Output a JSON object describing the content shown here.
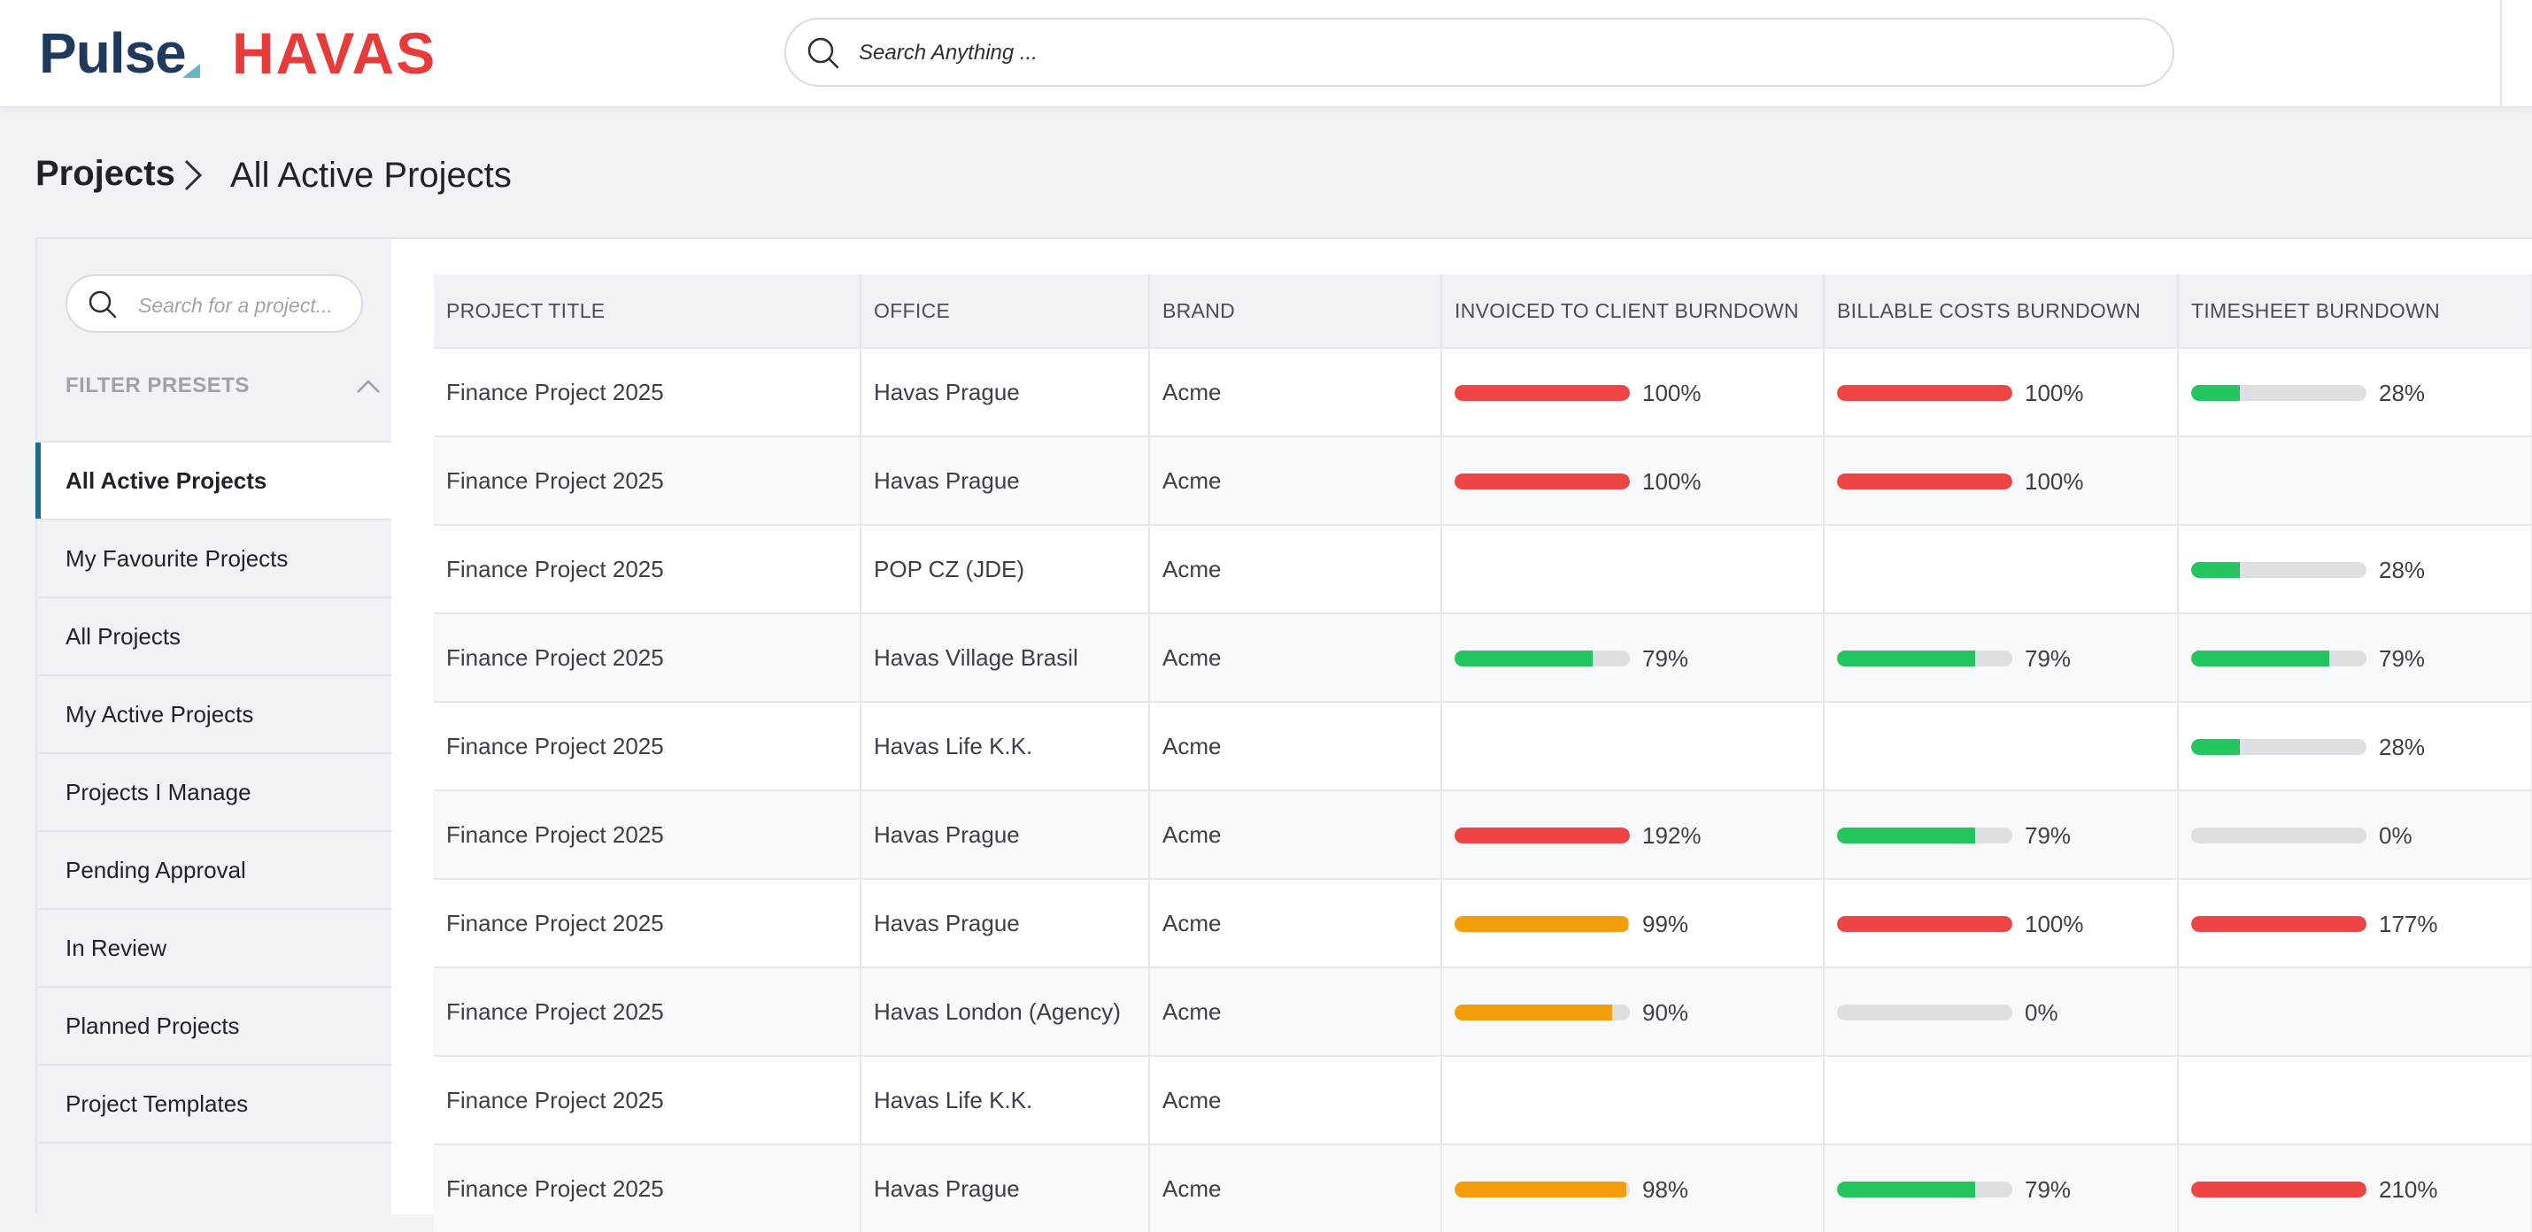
{
  "header": {
    "logo_primary": "Pulse",
    "logo_secondary": "HAVAS",
    "search_placeholder": "Search Anything ..."
  },
  "breadcrumb": {
    "root": "Projects",
    "current": "All Active Projects"
  },
  "sidebar": {
    "search_placeholder": "Search for a project...",
    "filter_presets_label": "FILTER PRESETS",
    "items": [
      {
        "label": "All Active Projects",
        "active": true
      },
      {
        "label": "My Favourite Projects",
        "active": false
      },
      {
        "label": "All Projects",
        "active": false
      },
      {
        "label": "My Active Projects",
        "active": false
      },
      {
        "label": "Projects I Manage",
        "active": false
      },
      {
        "label": "Pending Approval",
        "active": false
      },
      {
        "label": "In Review",
        "active": false
      },
      {
        "label": "Planned Projects",
        "active": false
      },
      {
        "label": "Project Templates",
        "active": false
      }
    ]
  },
  "table": {
    "columns": [
      "PROJECT TITLE",
      "OFFICE",
      "BRAND",
      "INVOICED TO CLIENT BURNDOWN",
      "BILLABLE COSTS BURNDOWN",
      "TIMESHEET BURNDOWN"
    ],
    "rows": [
      {
        "title": "Finance Project 2025",
        "office": "Havas Prague",
        "brand": "Acme",
        "invoiced": {
          "pct": 100,
          "label": "100%",
          "color": "#ef4444"
        },
        "billable": {
          "pct": 100,
          "label": "100%",
          "color": "#ef4444"
        },
        "timesheet": {
          "pct": 28,
          "label": "28%",
          "color": "#22c55e"
        }
      },
      {
        "title": "Finance Project 2025",
        "office": "Havas Prague",
        "brand": "Acme",
        "invoiced": {
          "pct": 100,
          "label": "100%",
          "color": "#ef4444"
        },
        "billable": {
          "pct": 100,
          "label": "100%",
          "color": "#ef4444"
        },
        "timesheet": null
      },
      {
        "title": "Finance Project 2025",
        "office": "POP CZ (JDE)",
        "brand": "Acme",
        "invoiced": null,
        "billable": null,
        "timesheet": {
          "pct": 28,
          "label": "28%",
          "color": "#22c55e"
        }
      },
      {
        "title": "Finance Project 2025",
        "office": "Havas Village Brasil",
        "brand": "Acme",
        "invoiced": {
          "pct": 79,
          "label": "79%",
          "color": "#22c55e"
        },
        "billable": {
          "pct": 79,
          "label": "79%",
          "color": "#22c55e"
        },
        "timesheet": {
          "pct": 79,
          "label": "79%",
          "color": "#22c55e"
        }
      },
      {
        "title": "Finance Project 2025",
        "office": "Havas Life K.K.",
        "brand": "Acme",
        "invoiced": null,
        "billable": null,
        "timesheet": {
          "pct": 28,
          "label": "28%",
          "color": "#22c55e"
        }
      },
      {
        "title": "Finance Project 2025",
        "office": "Havas Prague",
        "brand": "Acme",
        "invoiced": {
          "pct": 100,
          "label": "192%",
          "color": "#ef4444"
        },
        "billable": {
          "pct": 79,
          "label": "79%",
          "color": "#22c55e"
        },
        "timesheet": {
          "pct": 0,
          "label": "0%",
          "color": "#22c55e"
        }
      },
      {
        "title": "Finance Project 2025",
        "office": "Havas Prague",
        "brand": "Acme",
        "invoiced": {
          "pct": 99,
          "label": "99%",
          "color": "#f59e0b"
        },
        "billable": {
          "pct": 100,
          "label": "100%",
          "color": "#ef4444"
        },
        "timesheet": {
          "pct": 100,
          "label": "177%",
          "color": "#ef4444"
        }
      },
      {
        "title": "Finance Project 2025",
        "office": "Havas London (Agency)",
        "brand": "Acme",
        "invoiced": {
          "pct": 90,
          "label": "90%",
          "color": "#f59e0b"
        },
        "billable": {
          "pct": 0,
          "label": "0%",
          "color": "#22c55e"
        },
        "timesheet": null
      },
      {
        "title": "Finance Project 2025",
        "office": "Havas Life K.K.",
        "brand": "Acme",
        "invoiced": null,
        "billable": null,
        "timesheet": null
      },
      {
        "title": "Finance Project 2025",
        "office": "Havas Prague",
        "brand": "Acme",
        "invoiced": {
          "pct": 98,
          "label": "98%",
          "color": "#f59e0b"
        },
        "billable": {
          "pct": 79,
          "label": "79%",
          "color": "#22c55e"
        },
        "timesheet": {
          "pct": 100,
          "label": "210%",
          "color": "#ef4444"
        }
      }
    ]
  }
}
